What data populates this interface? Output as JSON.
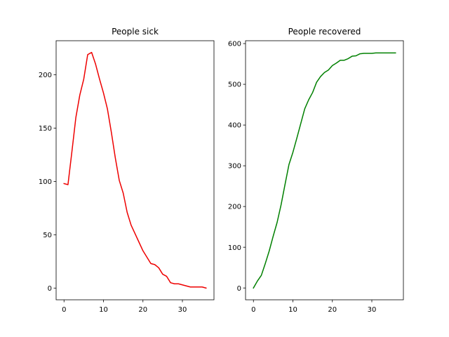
{
  "chart_data": [
    {
      "type": "line",
      "title": "People sick",
      "xlabel": "",
      "ylabel": "",
      "xlim": [
        -2,
        38
      ],
      "ylim": [
        -11,
        232
      ],
      "xticks": [
        0,
        10,
        20,
        30
      ],
      "yticks": [
        0,
        50,
        100,
        150,
        200
      ],
      "grid": false,
      "color": "#ee0000",
      "series": [
        {
          "x": [
            0,
            1,
            2,
            3,
            4,
            5,
            6,
            7,
            8,
            9,
            10,
            11,
            12,
            13,
            14,
            15,
            16,
            17,
            18,
            19,
            20,
            21,
            22,
            23,
            24,
            25,
            26,
            27,
            28,
            29,
            30,
            31,
            32,
            33,
            34,
            35,
            36
          ],
          "values": [
            98,
            97,
            128,
            160,
            181,
            196,
            219,
            221,
            210,
            196,
            183,
            168,
            146,
            122,
            101,
            89,
            71,
            59,
            51,
            43,
            35,
            29,
            23,
            22,
            19,
            13,
            11,
            5,
            4,
            4,
            3,
            2,
            1,
            1,
            1,
            1,
            0
          ]
        }
      ]
    },
    {
      "type": "line",
      "title": "People recovered",
      "xlabel": "",
      "ylabel": "",
      "xlim": [
        -2,
        38
      ],
      "ylim": [
        -29,
        607
      ],
      "xticks": [
        0,
        10,
        20,
        30
      ],
      "yticks": [
        0,
        100,
        200,
        300,
        400,
        500,
        600
      ],
      "grid": false,
      "color": "#008000",
      "series": [
        {
          "x": [
            0,
            1,
            2,
            3,
            4,
            5,
            6,
            7,
            8,
            9,
            10,
            11,
            12,
            13,
            14,
            15,
            16,
            17,
            18,
            19,
            20,
            21,
            22,
            23,
            24,
            25,
            26,
            27,
            28,
            29,
            30,
            31,
            32,
            33,
            34,
            35,
            36
          ],
          "values": [
            0,
            17,
            31,
            60,
            91,
            127,
            161,
            204,
            254,
            303,
            333,
            368,
            404,
            440,
            462,
            480,
            505,
            519,
            529,
            535,
            546,
            552,
            559,
            559,
            563,
            569,
            570,
            575,
            576,
            576,
            576,
            577,
            577,
            577,
            577,
            577,
            577
          ]
        }
      ]
    }
  ]
}
